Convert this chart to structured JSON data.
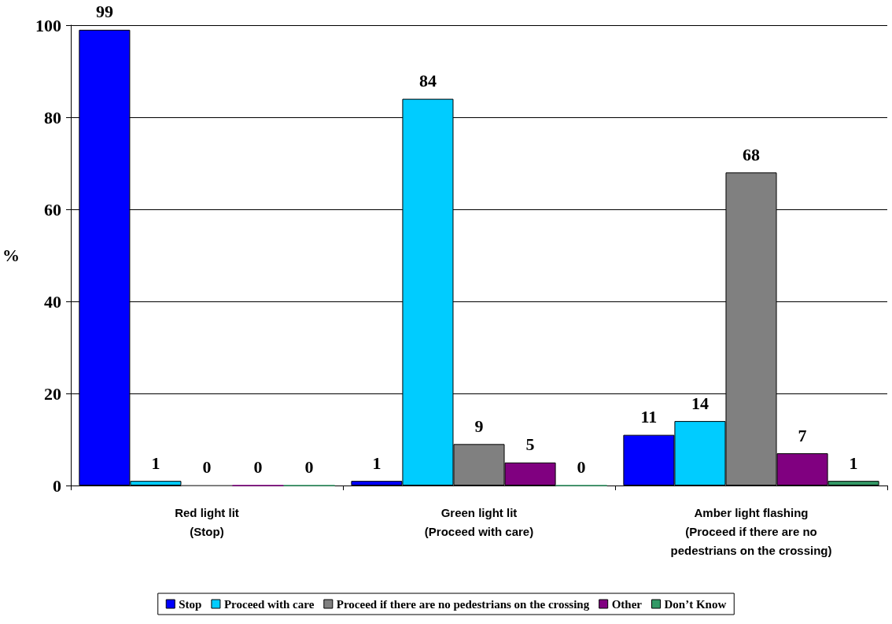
{
  "chart_data": {
    "type": "bar",
    "ylabel": "%",
    "categories": [
      "Red light lit\n(Stop)",
      "Green light lit\n(Proceed with care)",
      "Amber light flashing\n(Proceed if there are no\npedestrians on the crossing)"
    ],
    "series": [
      {
        "name": "Stop",
        "color": "#0000ff",
        "values": [
          99,
          1,
          11
        ]
      },
      {
        "name": "Proceed with care",
        "color": "#00ccff",
        "values": [
          1,
          84,
          14
        ]
      },
      {
        "name": "Proceed if there are no pedestrians on the crossing",
        "color": "#808080",
        "values": [
          0,
          9,
          68
        ]
      },
      {
        "name": "Other",
        "color": "#800080",
        "values": [
          0,
          5,
          7
        ]
      },
      {
        "name": "Don’t Know",
        "color": "#339966",
        "values": [
          0,
          0,
          1
        ]
      }
    ],
    "ylim": [
      0,
      100
    ],
    "yticks": [
      0,
      20,
      40,
      60,
      80,
      100
    ],
    "grid": "y",
    "legend": "bottom",
    "data_labels": true
  }
}
